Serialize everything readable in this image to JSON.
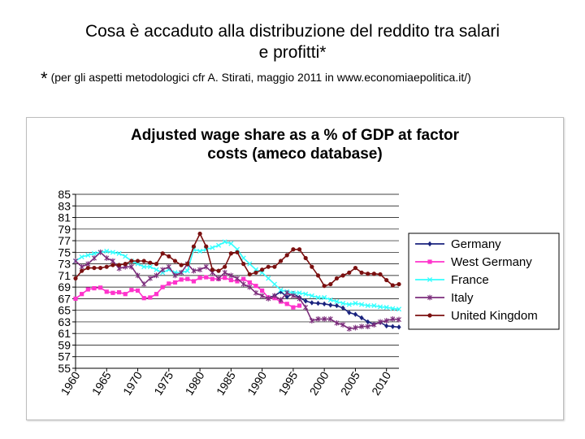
{
  "slide": {
    "title_line1": "Cosa è accaduto alla distribuzione del reddito tra salari",
    "title_line2": "e profitti*",
    "subtitle_star": "*",
    "subtitle": "(per gli aspetti metodologici cfr A. Stirati, maggio 2011 in  www.economiaepolitica.it/)"
  },
  "chart_data": {
    "type": "line",
    "title_line1": "Adjusted wage share as a % of GDP at factor",
    "title_line2": "costs (ameco database)",
    "ylim": [
      55,
      85
    ],
    "yticks": [
      55,
      57,
      59,
      61,
      63,
      65,
      67,
      69,
      71,
      73,
      75,
      77,
      79,
      81,
      83,
      85
    ],
    "xlim": [
      1960,
      2012
    ],
    "xticks": [
      1960,
      1965,
      1970,
      1975,
      1980,
      1985,
      1990,
      1995,
      2000,
      2005,
      2010
    ],
    "grid": "horizontal",
    "legend_position": "right",
    "series": [
      {
        "name": "Germany",
        "color": "#1a237e",
        "marker": "diamond",
        "x": [
          1991,
          1992,
          1993,
          1994,
          1995,
          1996,
          1997,
          1998,
          1999,
          2000,
          2001,
          2002,
          2003,
          2004,
          2005,
          2006,
          2007,
          2008,
          2009,
          2010,
          2011,
          2012
        ],
        "y": [
          67.2,
          67.5,
          68.2,
          67.3,
          67.9,
          67.2,
          66.6,
          66.3,
          66.2,
          66.1,
          65.9,
          65.8,
          65.4,
          64.6,
          64.3,
          63.7,
          63.0,
          62.6,
          62.9,
          62.3,
          62.2,
          62.1
        ]
      },
      {
        "name": "West Germany",
        "color": "#ff33cc",
        "marker": "square",
        "x": [
          1960,
          1961,
          1962,
          1963,
          1964,
          1965,
          1966,
          1967,
          1968,
          1969,
          1970,
          1971,
          1972,
          1973,
          1974,
          1975,
          1976,
          1977,
          1978,
          1979,
          1980,
          1981,
          1982,
          1983,
          1984,
          1985,
          1986,
          1987,
          1988,
          1989,
          1990,
          1991,
          1992,
          1993,
          1994,
          1995,
          1996,
          1997,
          1998,
          1999,
          2000,
          2001,
          2002,
          2003,
          2004,
          2005,
          2006,
          2007,
          2008,
          2009,
          2010,
          2011,
          2012
        ],
        "y": [
          67.0,
          67.8,
          68.6,
          68.8,
          68.9,
          68.2,
          68.0,
          68.1,
          67.8,
          68.5,
          68.4,
          67.1,
          67.2,
          67.8,
          69.0,
          69.6,
          69.8,
          70.3,
          70.4,
          70.0,
          70.6,
          70.7,
          70.4,
          70.4,
          70.6,
          70.2,
          70.0,
          70.4,
          69.8,
          69.2,
          68.4,
          67.2,
          67.1,
          66.5,
          66.1,
          65.5,
          65.8,
          null,
          null,
          null,
          null,
          null,
          null,
          null,
          null,
          null,
          null,
          null,
          null,
          null,
          null,
          null,
          null
        ]
      },
      {
        "name": "France",
        "color": "#33ffff",
        "marker": "x",
        "x": [
          1960,
          1961,
          1962,
          1963,
          1964,
          1965,
          1966,
          1967,
          1968,
          1969,
          1970,
          1971,
          1972,
          1973,
          1974,
          1975,
          1976,
          1977,
          1978,
          1979,
          1980,
          1981,
          1982,
          1983,
          1984,
          1985,
          1986,
          1987,
          1988,
          1989,
          1990,
          1991,
          1992,
          1993,
          1994,
          1995,
          1996,
          1997,
          1998,
          1999,
          2000,
          2001,
          2002,
          2003,
          2004,
          2005,
          2006,
          2007,
          2008,
          2009,
          2010,
          2011,
          2012
        ],
        "y": [
          73.5,
          74.2,
          74.5,
          74.8,
          75.0,
          75.2,
          75.0,
          74.8,
          74.3,
          73.5,
          73.0,
          72.5,
          72.5,
          72.0,
          71.5,
          72.0,
          71.5,
          71.5,
          71.8,
          75.5,
          75.2,
          75.5,
          75.8,
          76.2,
          76.8,
          76.5,
          75.5,
          74.0,
          73.0,
          72.0,
          71.5,
          70.5,
          69.5,
          68.5,
          68.2,
          68.0,
          68.0,
          67.8,
          67.5,
          67.2,
          67.2,
          66.8,
          66.5,
          66.2,
          66.0,
          66.2,
          66.0,
          65.8,
          65.8,
          65.6,
          65.5,
          65.3,
          65.2
        ]
      },
      {
        "name": "Italy",
        "color": "#7b2d7b",
        "marker": "star",
        "x": [
          1960,
          1961,
          1962,
          1963,
          1964,
          1965,
          1966,
          1967,
          1968,
          1969,
          1970,
          1971,
          1972,
          1973,
          1974,
          1975,
          1976,
          1977,
          1978,
          1979,
          1980,
          1981,
          1982,
          1983,
          1984,
          1985,
          1986,
          1987,
          1988,
          1989,
          1990,
          1991,
          1992,
          1993,
          1994,
          1995,
          1996,
          1997,
          1998,
          1999,
          2000,
          2001,
          2002,
          2003,
          2004,
          2005,
          2006,
          2007,
          2008,
          2009,
          2010,
          2011,
          2012
        ],
        "y": [
          73.5,
          72.5,
          73.0,
          74.0,
          75.0,
          74.0,
          73.5,
          72.2,
          72.5,
          72.5,
          71.0,
          69.5,
          70.5,
          71.0,
          72.0,
          72.5,
          71.0,
          71.5,
          73.0,
          71.8,
          72.0,
          72.5,
          71.5,
          70.5,
          71.5,
          71.0,
          70.5,
          69.5,
          69.0,
          68.0,
          67.5,
          67.0,
          67.5,
          66.8,
          68.0,
          67.5,
          67.0,
          65.5,
          63.2,
          63.5,
          63.5,
          63.5,
          62.8,
          62.5,
          61.8,
          62.0,
          62.2,
          62.2,
          62.5,
          63.0,
          63.2,
          63.5,
          63.4
        ]
      },
      {
        "name": "United Kingdom",
        "color": "#7b1010",
        "marker": "circle",
        "x": [
          1960,
          1961,
          1962,
          1963,
          1964,
          1965,
          1966,
          1967,
          1968,
          1969,
          1970,
          1971,
          1972,
          1973,
          1974,
          1975,
          1976,
          1977,
          1978,
          1979,
          1980,
          1981,
          1982,
          1983,
          1984,
          1985,
          1986,
          1987,
          1988,
          1989,
          1990,
          1991,
          1992,
          1993,
          1994,
          1995,
          1996,
          1997,
          1998,
          1999,
          2000,
          2001,
          2002,
          2003,
          2004,
          2005,
          2006,
          2007,
          2008,
          2009,
          2010,
          2011,
          2012
        ],
        "y": [
          70.5,
          71.8,
          72.3,
          72.3,
          72.3,
          72.5,
          72.8,
          72.8,
          73.0,
          73.5,
          73.5,
          73.5,
          73.2,
          73.0,
          74.8,
          74.3,
          73.5,
          72.8,
          73.0,
          76.0,
          78.2,
          76.0,
          72.0,
          71.8,
          72.5,
          74.8,
          75.0,
          73.0,
          71.2,
          71.5,
          72.0,
          72.5,
          72.5,
          73.5,
          74.5,
          75.5,
          75.5,
          74.0,
          72.5,
          71.0,
          69.2,
          69.5,
          70.5,
          71.0,
          71.5,
          72.3,
          71.5,
          71.3,
          71.3,
          71.2,
          70.2,
          69.3,
          69.5
        ]
      }
    ]
  }
}
